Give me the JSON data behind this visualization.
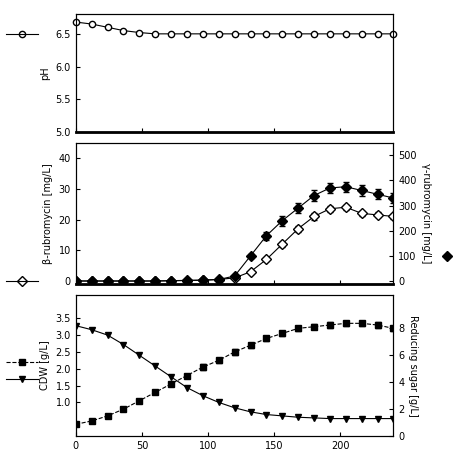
{
  "time": [
    0,
    12,
    24,
    36,
    48,
    60,
    72,
    84,
    96,
    108,
    120,
    132,
    144,
    156,
    168,
    180,
    192,
    204,
    216,
    228,
    240
  ],
  "ph": [
    6.68,
    6.65,
    6.6,
    6.55,
    6.52,
    6.5,
    6.5,
    6.5,
    6.5,
    6.5,
    6.5,
    6.5,
    6.5,
    6.5,
    6.5,
    6.5,
    6.5,
    6.5,
    6.5,
    6.5,
    6.5
  ],
  "beta_rub": [
    0,
    0,
    0,
    0,
    0,
    0,
    0.1,
    0.2,
    0.3,
    0.5,
    1.0,
    3.0,
    7.0,
    12.0,
    17.0,
    21.0,
    23.5,
    24.0,
    22.0,
    21.5,
    21.0
  ],
  "gamma_rub": [
    0,
    0,
    0,
    0,
    0,
    0,
    1,
    2,
    3,
    6,
    20,
    100,
    180,
    240,
    290,
    340,
    370,
    375,
    360,
    345,
    330
  ],
  "cdw": [
    0.35,
    0.45,
    0.6,
    0.8,
    1.05,
    1.3,
    1.55,
    1.8,
    2.05,
    2.25,
    2.5,
    2.7,
    2.9,
    3.05,
    3.2,
    3.25,
    3.3,
    3.35,
    3.35,
    3.3,
    3.2
  ],
  "sugar": [
    8.2,
    7.9,
    7.5,
    6.8,
    6.0,
    5.2,
    4.4,
    3.6,
    3.0,
    2.5,
    2.1,
    1.8,
    1.6,
    1.5,
    1.4,
    1.35,
    1.3,
    1.3,
    1.3,
    1.3,
    1.3
  ],
  "cdw_err": [
    0.05,
    0.05,
    0.05,
    0.05,
    0.05,
    0.05,
    0.05,
    0.05,
    0.08,
    0.08,
    0.08,
    0.08,
    0.08,
    0.08,
    0.08,
    0.08,
    0.08,
    0.08,
    0.08,
    0.08,
    0.08
  ],
  "beta_err": [
    0,
    0,
    0,
    0,
    0,
    0,
    0,
    0,
    0,
    0,
    0,
    0.3,
    0.5,
    0.8,
    1.0,
    1.0,
    1.0,
    0.8,
    0.8,
    0.8,
    0.8
  ],
  "gamma_err": [
    0,
    0,
    0,
    0,
    0,
    0,
    0,
    0,
    0,
    0,
    2,
    8,
    15,
    20,
    20,
    20,
    20,
    20,
    20,
    20,
    20
  ],
  "ph_ylim": [
    5.0,
    6.8
  ],
  "ph_yticks": [
    5.0,
    5.5,
    6.0,
    6.5
  ],
  "beta_ylim": [
    -1,
    45
  ],
  "beta_yticks": [
    0,
    10,
    20,
    30,
    40
  ],
  "gamma_ylim": [
    -12,
    550
  ],
  "gamma_yticks": [
    0,
    100,
    200,
    300,
    400,
    500
  ],
  "cdw_ylim": [
    0,
    4.2
  ],
  "cdw_yticks": [
    1.0,
    1.5,
    2.0,
    2.5,
    3.0,
    3.5
  ],
  "sugar_ylim": [
    0,
    10.5
  ],
  "sugar_yticks": [
    0,
    2,
    4,
    6,
    8
  ],
  "xlim": [
    0,
    240
  ],
  "xticks": [
    0,
    50,
    100,
    150,
    200
  ],
  "ph_label": "pH",
  "beta_label": "β-rubromycin [mg/L]",
  "gamma_label": "γ-rubromycin [mg/L]",
  "cdw_label": "CDW [g/L]",
  "sugar_label": "Reducing sugar [g/L]",
  "background": "white"
}
